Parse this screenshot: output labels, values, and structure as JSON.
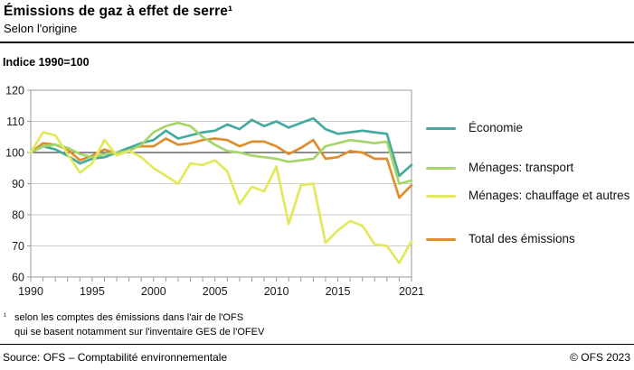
{
  "header": {
    "title": "Émissions de gaz à effet de serre¹",
    "subtitle": "Selon l'origine"
  },
  "chart": {
    "unit_label": "Indice 1990=100"
  },
  "chart_data": {
    "type": "line",
    "title": "Émissions de gaz à effet de serre, selon l'origine",
    "xlabel": "",
    "ylabel": "Indice 1990=100",
    "ylim": [
      60,
      120
    ],
    "yticks": [
      120,
      110,
      100,
      90,
      80,
      70,
      60
    ],
    "xticks": [
      1990,
      1995,
      2000,
      2005,
      2010,
      2015,
      2021
    ],
    "x_range": [
      1990,
      2021
    ],
    "baseline": 100,
    "grid": true,
    "legend_position": "right",
    "x": [
      1990,
      1991,
      1992,
      1993,
      1994,
      1995,
      1996,
      1997,
      1998,
      1999,
      2000,
      2001,
      2002,
      2003,
      2004,
      2005,
      2006,
      2007,
      2008,
      2009,
      2010,
      2011,
      2012,
      2013,
      2014,
      2015,
      2016,
      2017,
      2018,
      2019,
      2020,
      2021
    ],
    "series": [
      {
        "name": "Économie",
        "slug": "economie",
        "color": "#44A99F",
        "values": [
          100,
          102,
          101,
          99,
          96.5,
          98,
          98.5,
          100,
          101.5,
          103,
          104,
          107,
          104.5,
          105.5,
          106.5,
          107,
          109,
          107.5,
          110.5,
          108.5,
          110,
          108,
          109.5,
          111,
          107.5,
          106,
          106.5,
          107,
          106.5,
          106,
          92.5,
          96
        ]
      },
      {
        "name": "Ménages: transport",
        "slug": "menages-transport",
        "color": "#A6D56C",
        "values": [
          100,
          102,
          102.5,
          101.5,
          99.5,
          98.5,
          99.5,
          100,
          100.5,
          102.5,
          106.5,
          108.5,
          109.5,
          108.5,
          105,
          102.5,
          100.5,
          100,
          99,
          98.5,
          98,
          97,
          97.5,
          98,
          102,
          103,
          104,
          103.5,
          103,
          103.5,
          90,
          91
        ]
      },
      {
        "name": "Ménages: chauffage et autres",
        "slug": "menages-chauffage",
        "color": "#E3E95C",
        "values": [
          100,
          106.5,
          105.5,
          99.5,
          93.5,
          96.5,
          104,
          99,
          100.5,
          98.5,
          95,
          92.5,
          90,
          96.5,
          96,
          97.5,
          94,
          83.5,
          89,
          87.5,
          95.5,
          77,
          89.5,
          90,
          71,
          75,
          78,
          76.5,
          70.5,
          70,
          64.5,
          71.5
        ]
      },
      {
        "name": "Total des émissions",
        "slug": "total-emissions",
        "color": "#DF8E2D",
        "values": [
          100,
          103,
          102.5,
          101,
          97.5,
          99,
          101,
          99.5,
          101.5,
          102,
          102,
          104.5,
          102.5,
          103,
          104,
          104.5,
          104,
          102,
          103.5,
          103.5,
          102,
          99.5,
          101.5,
          104,
          98,
          98.5,
          100.5,
          100,
          98,
          98,
          85.5,
          89.5
        ]
      }
    ],
    "colors": {
      "grid": "#CCCCCC",
      "baseline": "#4A4A4A",
      "frame": "#999999",
      "tick": "#999999",
      "text": "#1A1A1A"
    }
  },
  "footnote": {
    "marker": "¹",
    "line1": "selon les comptes des émissions dans l'air de l'OFS",
    "line2": "qui se basent notamment sur l'inventaire GES de l'OFEV"
  },
  "footer": {
    "source": "Source: OFS – Comptabilité environnementale",
    "copyright": "© OFS 2023"
  }
}
